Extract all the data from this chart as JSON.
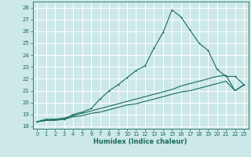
{
  "xlabel": "Humidex (Indice chaleur)",
  "bg_color": "#cce8e8",
  "grid_color": "#ffffff",
  "line_color": "#1a6b5a",
  "xlim": [
    -0.5,
    23.5
  ],
  "ylim": [
    17.8,
    28.5
  ],
  "xticks": [
    0,
    1,
    2,
    3,
    4,
    5,
    6,
    7,
    8,
    9,
    10,
    11,
    12,
    13,
    14,
    15,
    16,
    17,
    18,
    19,
    20,
    21,
    22,
    23
  ],
  "yticks": [
    18,
    19,
    20,
    21,
    22,
    23,
    24,
    25,
    26,
    27,
    28
  ],
  "line1_x": [
    0,
    1,
    2,
    3,
    4,
    5,
    6,
    7,
    8,
    9,
    10,
    11,
    12,
    13,
    14,
    15,
    16,
    17,
    18,
    19,
    20,
    21,
    22,
    23
  ],
  "line1_y": [
    18.4,
    18.6,
    18.6,
    18.6,
    19.0,
    19.2,
    19.5,
    20.3,
    21.0,
    21.5,
    22.1,
    22.7,
    23.1,
    24.6,
    25.9,
    27.8,
    27.2,
    26.1,
    25.0,
    24.4,
    22.8,
    22.2,
    22.2,
    21.5
  ],
  "line2_x": [
    0,
    1,
    2,
    3,
    4,
    5,
    6,
    7,
    8,
    9,
    10,
    11,
    12,
    13,
    14,
    15,
    16,
    17,
    18,
    19,
    20,
    21,
    22,
    23
  ],
  "line2_y": [
    18.4,
    18.5,
    18.6,
    18.7,
    18.9,
    19.1,
    19.3,
    19.5,
    19.7,
    19.9,
    20.1,
    20.3,
    20.5,
    20.7,
    20.9,
    21.1,
    21.4,
    21.6,
    21.8,
    22.0,
    22.2,
    22.3,
    21.0,
    21.5
  ],
  "line3_x": [
    0,
    1,
    2,
    3,
    4,
    5,
    6,
    7,
    8,
    9,
    10,
    11,
    12,
    13,
    14,
    15,
    16,
    17,
    18,
    19,
    20,
    21,
    22,
    23
  ],
  "line3_y": [
    18.4,
    18.5,
    18.5,
    18.6,
    18.8,
    18.9,
    19.1,
    19.2,
    19.4,
    19.6,
    19.8,
    19.9,
    20.1,
    20.3,
    20.5,
    20.7,
    20.9,
    21.0,
    21.2,
    21.4,
    21.6,
    21.8,
    21.0,
    21.5
  ]
}
